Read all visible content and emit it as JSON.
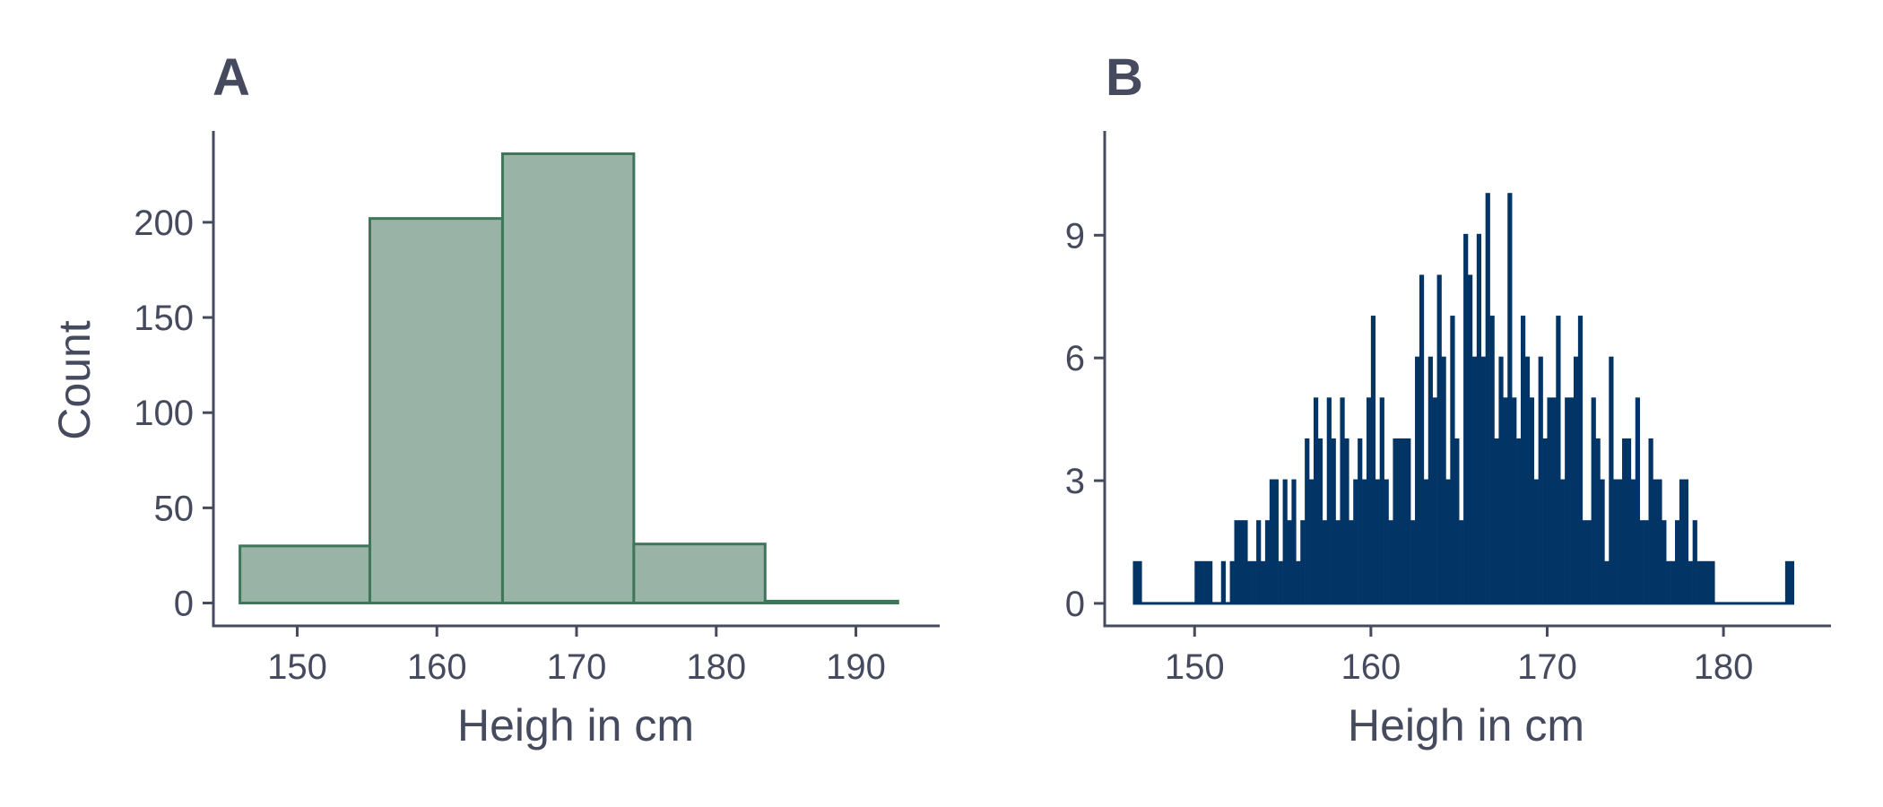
{
  "colors": {
    "text": "#454a5e",
    "axis": "#454a5e",
    "panel_a_fill": "#99b4a6",
    "panel_a_stroke": "#3e765a",
    "panel_b_fill": "#033466"
  },
  "chart_data": [
    {
      "type": "bar",
      "panel_tag": "A",
      "xlabel": "Heigh in cm",
      "ylabel": "Count",
      "x_ticks": [
        150,
        160,
        170,
        180,
        190
      ],
      "y_ticks": [
        0,
        50,
        100,
        150,
        200
      ],
      "xlim": [
        144,
        196
      ],
      "ylim": [
        -12,
        248
      ],
      "bins": [
        {
          "start": 145.9,
          "end": 155.2,
          "count": 30
        },
        {
          "start": 155.2,
          "end": 164.7,
          "count": 202
        },
        {
          "start": 164.7,
          "end": 174.1,
          "count": 236
        },
        {
          "start": 174.1,
          "end": 183.5,
          "count": 31
        },
        {
          "start": 183.5,
          "end": 193.0,
          "count": 1
        }
      ]
    },
    {
      "type": "bar",
      "panel_tag": "B",
      "xlabel": "Heigh in cm",
      "ylabel": "",
      "x_ticks": [
        150,
        160,
        170,
        180
      ],
      "y_ticks": [
        0,
        3,
        6,
        9
      ],
      "xlim": [
        144.9,
        186.1
      ],
      "ylim": [
        -0.55,
        11.55
      ],
      "bin_start": 146.5,
      "bin_width": 0.25,
      "counts": [
        1,
        1,
        0,
        0,
        0,
        0,
        0,
        0,
        0,
        0,
        0,
        0,
        0,
        0,
        1,
        1,
        1,
        1,
        0,
        0,
        1,
        0,
        1,
        2,
        2,
        2,
        1,
        1,
        2,
        1,
        2,
        3,
        3,
        1,
        3,
        2,
        3,
        1,
        2,
        4,
        3,
        5,
        4,
        2,
        5,
        4,
        2,
        5,
        4,
        2,
        3,
        4,
        3,
        5,
        7,
        3,
        5,
        3,
        2,
        4,
        4,
        4,
        4,
        2,
        6,
        8,
        3,
        6,
        5,
        8,
        6,
        3,
        7,
        4,
        2,
        9,
        8,
        6,
        9,
        6,
        10,
        7,
        4,
        6,
        5,
        10,
        5,
        4,
        7,
        6,
        5,
        3,
        6,
        4,
        5,
        5,
        7,
        3,
        5,
        5,
        6,
        7,
        2,
        2,
        5,
        4,
        3,
        1,
        6,
        3,
        3,
        4,
        4,
        3,
        5,
        2,
        2,
        4,
        3,
        3,
        2,
        1,
        1,
        2,
        3,
        3,
        1,
        2,
        1,
        1,
        1,
        1,
        0,
        0,
        0,
        0,
        0,
        0,
        0,
        0,
        0,
        0,
        0,
        0,
        0,
        0,
        0,
        0,
        1,
        1
      ]
    }
  ]
}
